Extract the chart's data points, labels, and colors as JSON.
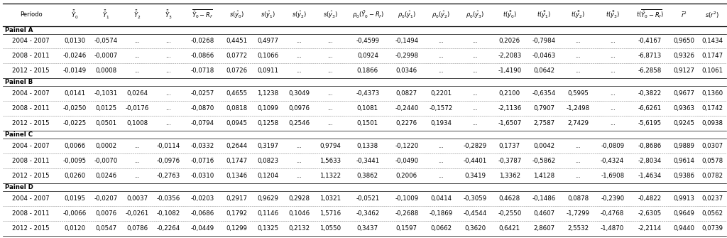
{
  "panels": [
    {
      "name": "Painel A",
      "rows": [
        [
          "2004 - 2007",
          "0,0130",
          "-0,0574",
          "...",
          "...",
          "-0,0268",
          "0,4451",
          "0,4977",
          "...",
          "...",
          "-0,4599",
          "-0,1494",
          "...",
          "...",
          "0,2026",
          "-0,7984",
          "...",
          "...",
          "-0,4167",
          "0,9650",
          "0,1434"
        ],
        [
          "2008 - 2011",
          "-0,0246",
          "-0,0007",
          "...",
          "...",
          "-0,0866",
          "0,0772",
          "0,1066",
          "...",
          "...",
          "0,0924",
          "-0,2998",
          "...",
          "...",
          "-2,2083",
          "-0,0463",
          "...",
          "...",
          "-6,8713",
          "0,9326",
          "0,1747"
        ],
        [
          "2012 - 2015",
          "-0,0149",
          "0,0008",
          "...",
          "...",
          "-0,0718",
          "0,0726",
          "0,0911",
          "...",
          "...",
          "0,1866",
          "0,0346",
          "...",
          "...",
          "-1,4190",
          "0,0642",
          "...",
          "...",
          "-6,2858",
          "0,9127",
          "0,1061"
        ]
      ]
    },
    {
      "name": "Painel B",
      "rows": [
        [
          "2004 - 2007",
          "0,0141",
          "-0,1031",
          "0,0264",
          "...",
          "-0,0257",
          "0,4655",
          "1,1238",
          "0,3049",
          "...",
          "-0,4373",
          "0,0827",
          "0,2201",
          "...",
          "0,2100",
          "-0,6354",
          "0,5995",
          "...",
          "-0,3822",
          "0,9677",
          "0,1360"
        ],
        [
          "2008 - 2011",
          "-0,0250",
          "0,0125",
          "-0,0176",
          "...",
          "-0,0870",
          "0,0818",
          "0,1099",
          "0,0976",
          "...",
          "0,1081",
          "-0,2440",
          "-0,1572",
          "...",
          "-2,1136",
          "0,7907",
          "-1,2498",
          "...",
          "-6,6261",
          "0,9363",
          "0,1742"
        ],
        [
          "2012 - 2015",
          "-0,0225",
          "0,0501",
          "0,1008",
          "...",
          "-0,0794",
          "0,0945",
          "0,1258",
          "0,2546",
          "...",
          "0,1501",
          "0,2276",
          "0,1934",
          "...",
          "-1,6507",
          "2,7587",
          "2,7429",
          "...",
          "-5,6195",
          "0,9245",
          "0,0938"
        ]
      ]
    },
    {
      "name": "Painel C",
      "rows": [
        [
          "2004 - 2007",
          "0,0066",
          "0,0002",
          "...",
          "-0,0114",
          "-0,0332",
          "0,2644",
          "0,3197",
          "...",
          "0,9794",
          "0,1338",
          "-0,1220",
          "...",
          "-0,2829",
          "0,1737",
          "0,0042",
          "...",
          "-0,0809",
          "-0,8686",
          "0,9889",
          "0,0307"
        ],
        [
          "2008 - 2011",
          "-0,0095",
          "-0,0070",
          "...",
          "-0,0976",
          "-0,0716",
          "0,1747",
          "0,0823",
          "...",
          "1,5633",
          "-0,3441",
          "-0,0490",
          "...",
          "-0,4401",
          "-0,3787",
          "-0,5862",
          "...",
          "-0,4324",
          "-2,8034",
          "0,9614",
          "0,0578"
        ],
        [
          "2012 - 2015",
          "0,0260",
          "0,0246",
          "...",
          "-0,2763",
          "-0,0310",
          "0,1346",
          "0,1204",
          "...",
          "1,1322",
          "0,3862",
          "0,2006",
          "...",
          "0,3419",
          "1,3362",
          "1,4128",
          "...",
          "-1,6908",
          "-1,4634",
          "0,9386",
          "0,0782"
        ]
      ]
    },
    {
      "name": "Painel D",
      "rows": [
        [
          "2004 - 2007",
          "0,0195",
          "-0,0207",
          "0,0037",
          "-0,0356",
          "-0,0203",
          "0,2917",
          "0,9629",
          "0,2928",
          "1,0321",
          "-0,0521",
          "-0,1009",
          "0,0414",
          "-0,3059",
          "0,4628",
          "-0,1486",
          "0,0878",
          "-0,2390",
          "-0,4822",
          "0,9913",
          "0,0237"
        ],
        [
          "2008 - 2011",
          "-0,0066",
          "0,0076",
          "-0,0261",
          "-0,1082",
          "-0,0686",
          "0,1792",
          "0,1146",
          "0,1046",
          "1,5716",
          "-0,3462",
          "-0,2688",
          "-0,1869",
          "-0,4544",
          "-0,2550",
          "0,4607",
          "-1,7299",
          "-0,4768",
          "-2,6305",
          "0,9649",
          "0,0562"
        ],
        [
          "2012 - 2015",
          "0,0120",
          "0,0547",
          "0,0786",
          "-0,2264",
          "-0,0449",
          "0,1299",
          "0,1325",
          "0,2132",
          "1,0550",
          "0,3437",
          "0,1597",
          "0,0662",
          "0,3620",
          "0,6421",
          "2,8607",
          "2,5532",
          "-1,4870",
          "-2,2114",
          "0,9440",
          "0,0739"
        ]
      ]
    }
  ],
  "col_widths_rel": [
    9,
    5,
    5,
    5,
    5,
    6,
    5,
    5,
    5,
    5,
    7,
    5.5,
    5.5,
    5.5,
    5.5,
    5.5,
    5.5,
    5.5,
    6.5,
    4.5,
    4.5
  ],
  "bg_color": "#ffffff",
  "font_size": 6.2,
  "header_font_size": 6.0
}
